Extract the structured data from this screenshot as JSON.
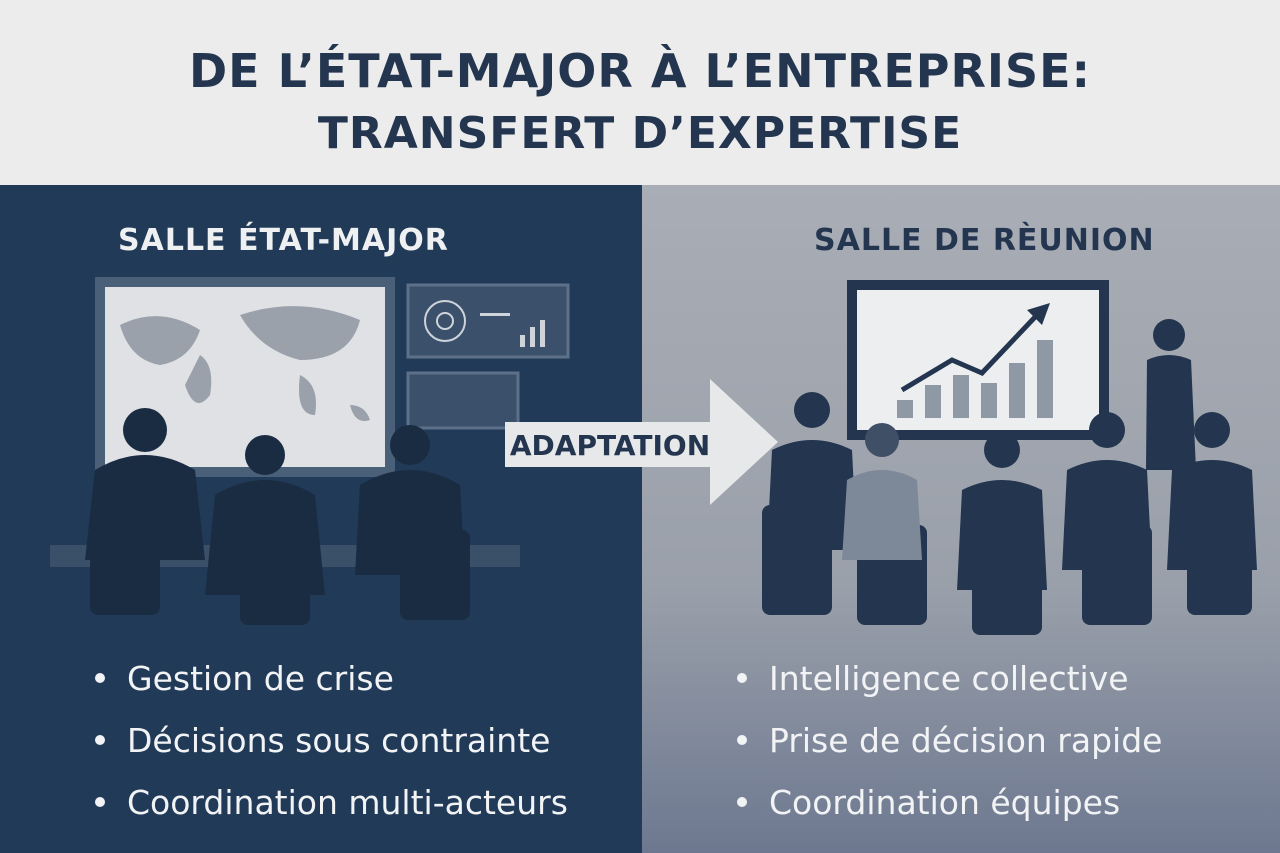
{
  "header": {
    "title_line1": "DE L’ÉTAT-MAJOR À L’ENTREPRISE:",
    "title_line2": "TRANSFERT D’EXPERTISE"
  },
  "left": {
    "title": "SALLE ÉTAT-MAJOR",
    "bullets": [
      "Gestion de crise",
      "Décisions sous contrainte",
      "Coordination multi-acteurs"
    ]
  },
  "right": {
    "title": "SALLE DE RÈUNION",
    "bullets": [
      "Intelligence collective",
      "Prise de décision rapide",
      "Coordination équipes"
    ]
  },
  "arrow": {
    "label": "ADAPTATION"
  },
  "colors": {
    "navy": "#213a57",
    "title": "#24364f",
    "grey": "#a9adb5",
    "background": "#ececec"
  }
}
